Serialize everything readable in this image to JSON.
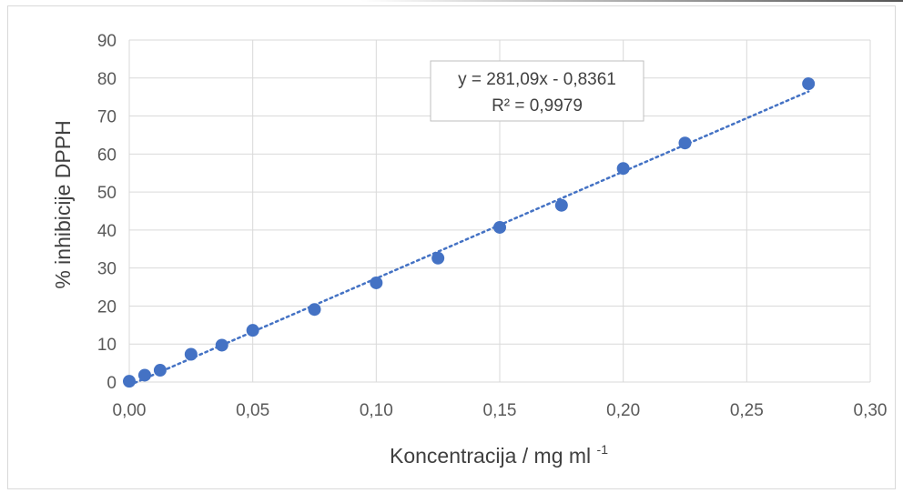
{
  "chart_data": {
    "type": "scatter",
    "xlabel": "Koncentracija / mg ml",
    "xlabel_superscript": "-1",
    "ylabel": "% inhibicije DPPH",
    "xlim": [
      0,
      0.3
    ],
    "ylim": [
      0,
      90
    ],
    "x_ticks": [
      "0,00",
      "0,05",
      "0,10",
      "0,15",
      "0,20",
      "0,25",
      "0,30"
    ],
    "y_ticks": [
      "0",
      "10",
      "20",
      "30",
      "40",
      "50",
      "60",
      "70",
      "80",
      "90"
    ],
    "grid": true,
    "marker_color": "#4472C4",
    "trendline_color": "#4472C4",
    "trendline": {
      "type": "linear",
      "slope": 281.09,
      "intercept": -0.8361,
      "x_range": [
        0,
        0.275
      ]
    },
    "equation_label": "y = 281,09x - 0,8361",
    "r2_label": "R² = 0,9979",
    "series": [
      {
        "x": [
          0,
          0.00625,
          0.0125,
          0.025,
          0.0375,
          0.05,
          0.075,
          0.1,
          0.125,
          0.15,
          0.175,
          0.2,
          0.225,
          0.275
        ],
        "y": [
          0.2,
          1.8,
          3.1,
          7.3,
          9.7,
          13.6,
          19.1,
          26.1,
          32.6,
          40.7,
          46.5,
          56.2,
          62.9,
          78.5
        ]
      }
    ]
  }
}
